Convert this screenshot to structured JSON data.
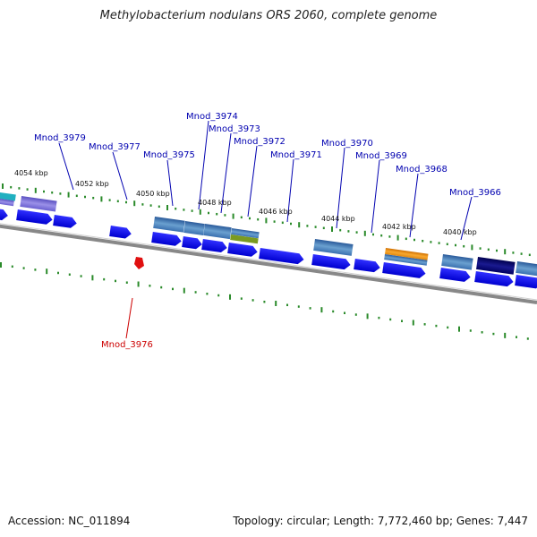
{
  "title": "Methylobacterium nodulans ORS 2060, complete genome",
  "footer": {
    "accession": "Accession: NC_011894",
    "summary": "Topology: circular; Length: 7,772,460 bp; Genes: 7,447"
  },
  "scale_labels": [
    "4054 kbp",
    "4052 kbp",
    "4050 kbp",
    "4048 kbp",
    "4046 kbp",
    "4044 kbp",
    "4042 kbp",
    "4040 kbp"
  ],
  "gene_labels": [
    {
      "name": "Mnod_3979",
      "color": "#0000b0"
    },
    {
      "name": "Mnod_3977",
      "color": "#0000b0"
    },
    {
      "name": "Mnod_3975",
      "color": "#0000b0"
    },
    {
      "name": "Mnod_3974",
      "color": "#0000b0"
    },
    {
      "name": "Mnod_3973",
      "color": "#0000b0"
    },
    {
      "name": "Mnod_3972",
      "color": "#0000b0"
    },
    {
      "name": "Mnod_3971",
      "color": "#0000b0"
    },
    {
      "name": "Mnod_3970",
      "color": "#0000b0"
    },
    {
      "name": "Mnod_3969",
      "color": "#0000b0"
    },
    {
      "name": "Mnod_3968",
      "color": "#0000b0"
    },
    {
      "name": "Mnod_3966",
      "color": "#0000b0"
    },
    {
      "name": "Mnod_3976",
      "color": "#cc0000"
    }
  ],
  "colors": {
    "cds_forward": "#1010f0",
    "backbone": "#8a8a8a",
    "gc_skew": "#2a8a2a",
    "rna": "#e01010",
    "feature_blue": "#4a80b8",
    "feature_lilac": "#7a70d8",
    "feature_olive": "#7a9a20",
    "feature_orange": "#f09010",
    "feature_navy": "#0a0a70",
    "feature_cyan": "#20b0c0"
  }
}
